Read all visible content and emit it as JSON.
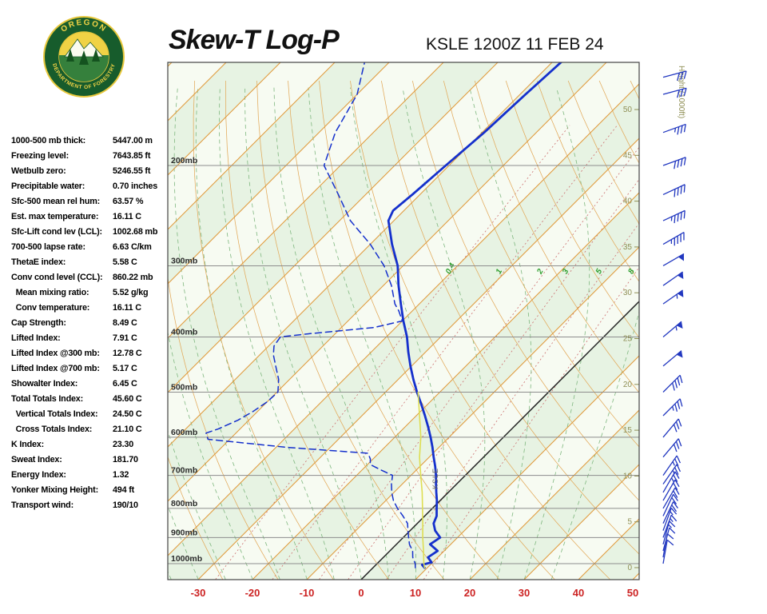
{
  "header": {
    "title": "Skew-T Log-P",
    "station": "KSLE 1200Z 11 FEB 24"
  },
  "logo": {
    "arc_top": "OREGON",
    "arc_bottom": "DEPARTMENT OF FORESTRY"
  },
  "indices": [
    {
      "label": "1000-500 mb thick:",
      "value": "5447.00 m"
    },
    {
      "label": "Freezing level:",
      "value": "7643.85 ft"
    },
    {
      "label": "Wetbulb zero:",
      "value": "5246.55 ft"
    },
    {
      "label": "Precipitable water:",
      "value": "0.70 inches"
    },
    {
      "label": "Sfc-500 mean rel hum:",
      "value": "63.57 %"
    },
    {
      "label": "Est. max temperature:",
      "value": "16.11 C"
    },
    {
      "label": "Sfc-Lift cond lev (LCL):",
      "value": "1002.68 mb"
    },
    {
      "label": "700-500 lapse rate:",
      "value": "6.63 C/km"
    },
    {
      "label": "ThetaE index:",
      "value": "5.58 C"
    },
    {
      "label": "Conv cond level (CCL):",
      "value": "860.22 mb"
    },
    {
      "label": "  Mean mixing ratio:",
      "value": "5.52 g/kg"
    },
    {
      "label": "  Conv temperature:",
      "value": "16.11 C"
    },
    {
      "label": "Cap Strength:",
      "value": "8.49 C"
    },
    {
      "label": "Lifted Index:",
      "value": "7.91 C"
    },
    {
      "label": "Lifted Index @300 mb:",
      "value": "12.78 C"
    },
    {
      "label": "Lifted Index @700 mb:",
      "value": "5.17 C"
    },
    {
      "label": "Showalter Index:",
      "value": "6.45 C"
    },
    {
      "label": "Total Totals Index:",
      "value": "45.60 C"
    },
    {
      "label": "  Vertical Totals Index:",
      "value": "24.50 C"
    },
    {
      "label": "  Cross Totals Index:",
      "value": "21.10 C"
    },
    {
      "label": "K Index:",
      "value": "23.30"
    },
    {
      "label": "Sweat Index:",
      "value": "181.70"
    },
    {
      "label": "Energy Index:",
      "value": "1.32"
    },
    {
      "label": "Yonker Mixing Height:",
      "value": "494 ft"
    },
    {
      "label": "Transport wind:",
      "value": "190/10"
    }
  ],
  "chart_data": {
    "type": "line",
    "title": "Skew-T Log-P",
    "station": "KSLE 1200Z 11 FEB 24",
    "x_axis": {
      "ticks": [
        -30,
        -20,
        -10,
        0,
        10,
        20,
        30,
        40,
        50
      ],
      "unit": "C"
    },
    "pressure_labels": [
      "200mb",
      "300mb",
      "400mb",
      "500mb",
      "600mb",
      "700mb",
      "800mb",
      "900mb",
      "1000mb"
    ],
    "height_axis": {
      "title": "Height (1000ft)",
      "ticks": [
        50,
        45,
        40,
        35,
        30,
        25,
        20,
        15,
        10,
        5,
        0
      ]
    },
    "background": {
      "isotherms": {
        "min": -130,
        "max": 50,
        "step": 10
      },
      "dry_adiabats": {
        "min": -40,
        "max": 170,
        "step": 10
      },
      "moist_adiabats": {
        "min": -60,
        "max": 35,
        "step": 5
      },
      "mixing_ratio_lines": [
        0.4,
        1,
        2,
        3,
        5,
        8
      ]
    },
    "station_inline_label": "KSLE",
    "series": [
      {
        "name": "temperature",
        "style": "solid",
        "points": [
          [
            1017,
            9.5
          ],
          [
            1005,
            8.5
          ],
          [
            995,
            9.8
          ],
          [
            975,
            8.2
          ],
          [
            950,
            8.8
          ],
          [
            925,
            6.2
          ],
          [
            900,
            6.8
          ],
          [
            875,
            4.6
          ],
          [
            850,
            3.0
          ],
          [
            825,
            2.2
          ],
          [
            800,
            0.8
          ],
          [
            775,
            -0.6
          ],
          [
            750,
            -2.2
          ],
          [
            725,
            -3.8
          ],
          [
            700,
            -5.4
          ],
          [
            675,
            -7.2
          ],
          [
            650,
            -9.2
          ],
          [
            625,
            -11.2
          ],
          [
            600,
            -13.4
          ],
          [
            575,
            -15.8
          ],
          [
            550,
            -18.4
          ],
          [
            525,
            -21.2
          ],
          [
            500,
            -24.2
          ],
          [
            475,
            -27.2
          ],
          [
            450,
            -30.2
          ],
          [
            425,
            -33.2
          ],
          [
            400,
            -36.2
          ],
          [
            375,
            -39.8
          ],
          [
            350,
            -43.4
          ],
          [
            325,
            -47.2
          ],
          [
            300,
            -51.0
          ],
          [
            275,
            -56.0
          ],
          [
            250,
            -61.0
          ],
          [
            240,
            -62.0
          ],
          [
            225,
            -61.4
          ],
          [
            200,
            -60.6
          ],
          [
            175,
            -59.6
          ],
          [
            150,
            -59.0
          ],
          [
            130,
            -58.3
          ]
        ]
      },
      {
        "name": "dewpoint",
        "style": "dashed",
        "points": [
          [
            1017,
            7.8
          ],
          [
            1000,
            7.0
          ],
          [
            975,
            5.4
          ],
          [
            950,
            4.2
          ],
          [
            925,
            2.4
          ],
          [
            900,
            1.0
          ],
          [
            875,
            -0.4
          ],
          [
            850,
            -1.8
          ],
          [
            825,
            -4.0
          ],
          [
            800,
            -6.4
          ],
          [
            775,
            -8.6
          ],
          [
            750,
            -10.4
          ],
          [
            725,
            -12.0
          ],
          [
            700,
            -13.4
          ],
          [
            685,
            -16.5
          ],
          [
            670,
            -19.5
          ],
          [
            655,
            -20.5
          ],
          [
            640,
            -22.0
          ],
          [
            625,
            -38.0
          ],
          [
            605,
            -54.0
          ],
          [
            590,
            -55.5
          ],
          [
            580,
            -54.0
          ],
          [
            560,
            -52.0
          ],
          [
            540,
            -50.8
          ],
          [
            520,
            -50.0
          ],
          [
            500,
            -49.8
          ],
          [
            475,
            -52.0
          ],
          [
            450,
            -55.0
          ],
          [
            430,
            -57.5
          ],
          [
            415,
            -59.0
          ],
          [
            400,
            -59.5
          ],
          [
            395,
            -55.0
          ],
          [
            385,
            -44.0
          ],
          [
            375,
            -40.0
          ],
          [
            360,
            -42.5
          ],
          [
            350,
            -44.5
          ],
          [
            325,
            -48.5
          ],
          [
            300,
            -53.5
          ],
          [
            275,
            -60.0
          ],
          [
            250,
            -68.0
          ],
          [
            225,
            -75.0
          ],
          [
            200,
            -83.0
          ],
          [
            175,
            -87.0
          ],
          [
            150,
            -90.0
          ],
          [
            130,
            -95.0
          ]
        ]
      },
      {
        "name": "parcel",
        "style": "solid",
        "points": [
          [
            1017,
            9.5
          ],
          [
            1000,
            8.6
          ],
          [
            950,
            6.2
          ],
          [
            900,
            3.6
          ],
          [
            850,
            1.0
          ],
          [
            800,
            -1.8
          ],
          [
            750,
            -4.8
          ],
          [
            700,
            -8.2
          ],
          [
            650,
            -11.8
          ],
          [
            600,
            -15.2
          ],
          [
            550,
            -19.4
          ],
          [
            500,
            -24.0
          ]
        ]
      }
    ],
    "wind_barbs": [
      [
        1000,
        190,
        10
      ],
      [
        975,
        190,
        10
      ],
      [
        950,
        195,
        10
      ],
      [
        925,
        195,
        15
      ],
      [
        900,
        200,
        15
      ],
      [
        875,
        200,
        15
      ],
      [
        850,
        205,
        20
      ],
      [
        825,
        205,
        20
      ],
      [
        800,
        210,
        20
      ],
      [
        775,
        210,
        20
      ],
      [
        750,
        210,
        25
      ],
      [
        725,
        215,
        25
      ],
      [
        700,
        215,
        25
      ],
      [
        650,
        220,
        30
      ],
      [
        600,
        220,
        30
      ],
      [
        550,
        225,
        35
      ],
      [
        500,
        225,
        40
      ],
      [
        450,
        230,
        50
      ],
      [
        400,
        230,
        55
      ],
      [
        350,
        235,
        55
      ],
      [
        325,
        235,
        50
      ],
      [
        300,
        240,
        50
      ],
      [
        275,
        240,
        45
      ],
      [
        250,
        245,
        45
      ],
      [
        225,
        245,
        40
      ],
      [
        200,
        250,
        40
      ],
      [
        175,
        250,
        35
      ],
      [
        150,
        255,
        30
      ],
      [
        140,
        255,
        30
      ]
    ],
    "colors": {
      "temperature": "#1530cc",
      "dewpoint": "#1530cc",
      "parcel": "#dede52",
      "isotherm": "#e09a3c",
      "isotherm_zero": "#222222",
      "moist_adiabat": "#7fb77f",
      "dry_adiabat": "#e2a95a",
      "mixing_ratio": "#cc7070",
      "mixing_label": "#2f9e2f",
      "pressure_line": "#8d8d8d",
      "pressure_label": "#2a2a2a",
      "axis_temp": "#cc2222",
      "height_axis": "#8f8f55",
      "wind_barb": "#2238c0",
      "band_a": "#e7f3e3",
      "band_b": "#f7fbf2",
      "border": "#444444"
    }
  }
}
